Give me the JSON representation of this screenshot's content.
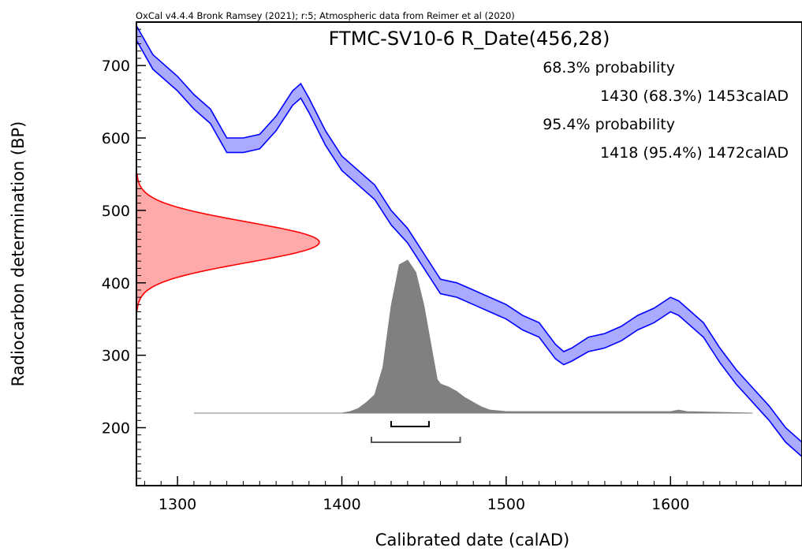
{
  "chart_data": {
    "type": "area",
    "credit": "OxCal v4.4.4 Bronk Ramsey (2021); r:5; Atmospheric data from Reimer et al (2020)",
    "title": "FTMC-SV10-6 R_Date(456,28)",
    "xlabel": "Calibrated date (calAD)",
    "ylabel": "Radiocarbon determination (BP)",
    "xlim": [
      1275,
      1680
    ],
    "ylim": [
      120,
      760
    ],
    "x_ticks": [
      1300,
      1400,
      1500,
      1600
    ],
    "y_ticks": [
      200,
      300,
      400,
      500,
      600,
      700
    ],
    "ranges": [
      {
        "label": "68.3% probability",
        "text": "1430 (68.3%) 1453calAD",
        "from": 1430,
        "to": 1453
      },
      {
        "label": "95.4% probability",
        "text": "1418 (95.4%) 1472calAD",
        "from": 1418,
        "to": 1472
      }
    ],
    "calibration_curve": {
      "color": "#0000ff",
      "fill": "#aaaaff",
      "x": [
        1275,
        1285,
        1300,
        1310,
        1320,
        1330,
        1340,
        1350,
        1360,
        1370,
        1375,
        1380,
        1390,
        1400,
        1410,
        1420,
        1430,
        1440,
        1450,
        1460,
        1470,
        1480,
        1490,
        1500,
        1510,
        1520,
        1530,
        1535,
        1540,
        1550,
        1560,
        1570,
        1580,
        1590,
        1600,
        1605,
        1610,
        1620,
        1630,
        1640,
        1650,
        1660,
        1670,
        1680
      ],
      "upper": [
        755,
        715,
        685,
        660,
        640,
        600,
        600,
        605,
        630,
        665,
        675,
        655,
        610,
        575,
        555,
        535,
        500,
        475,
        440,
        405,
        400,
        390,
        380,
        370,
        355,
        345,
        315,
        305,
        310,
        325,
        330,
        340,
        355,
        365,
        380,
        375,
        365,
        345,
        310,
        280,
        255,
        230,
        200,
        180
      ],
      "lower": [
        735,
        695,
        665,
        640,
        620,
        580,
        580,
        585,
        610,
        645,
        655,
        635,
        590,
        555,
        535,
        515,
        480,
        455,
        420,
        385,
        380,
        370,
        360,
        350,
        335,
        325,
        295,
        287,
        292,
        305,
        310,
        320,
        335,
        345,
        360,
        355,
        345,
        325,
        290,
        260,
        235,
        210,
        180,
        160
      ]
    },
    "radiocarbon_distribution": {
      "mean_bp": 456,
      "sigma_bp": 28,
      "color": "#ff0000",
      "fill": "#ffaaaa"
    },
    "calibrated_distribution": {
      "color": "#808080",
      "x": [
        1310,
        1400,
        1405,
        1410,
        1415,
        1420,
        1425,
        1430,
        1435,
        1440,
        1445,
        1450,
        1455,
        1458,
        1460,
        1465,
        1470,
        1475,
        1480,
        1485,
        1490,
        1500,
        1600,
        1605,
        1610,
        1650
      ],
      "density": [
        0,
        0,
        0.01,
        0.03,
        0.07,
        0.12,
        0.3,
        0.7,
        0.97,
        1.0,
        0.92,
        0.7,
        0.4,
        0.22,
        0.19,
        0.17,
        0.14,
        0.1,
        0.07,
        0.04,
        0.02,
        0.01,
        0.01,
        0.02,
        0.01,
        0
      ]
    }
  }
}
